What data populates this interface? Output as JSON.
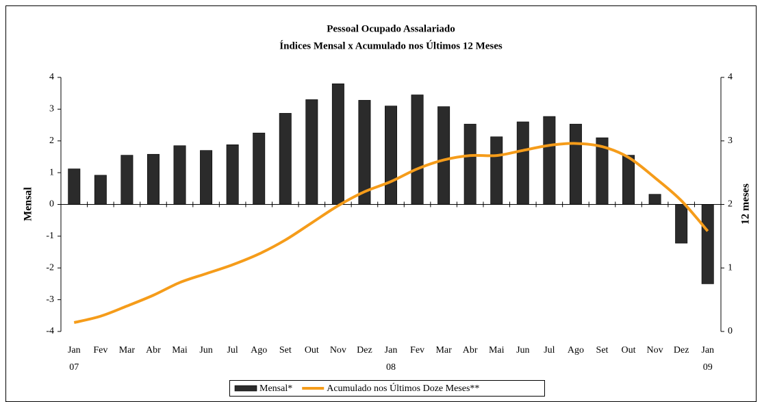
{
  "chart_data": {
    "type": "bar-line",
    "title": "Pessoal Ocupado Assalariado",
    "subtitle": "Índices Mensal x Acumulado nos Últimos 12 Meses",
    "y_label": "Mensal",
    "y2_label": "12 meses",
    "categories": [
      "Jan 07",
      "Fev",
      "Mar",
      "Abr",
      "Mai",
      "Jun",
      "Jul",
      "Ago",
      "Set",
      "Out",
      "Nov",
      "Dez",
      "Jan 08",
      "Fev",
      "Mar",
      "Abr",
      "Mai",
      "Jun",
      "Jul",
      "Ago",
      "Set",
      "Out",
      "Nov",
      "Dez",
      "Jan 09"
    ],
    "series": [
      {
        "name": "Mensal*",
        "type": "bar",
        "color": "#2b2b2b",
        "values": [
          1.12,
          0.92,
          1.55,
          1.58,
          1.85,
          1.7,
          1.88,
          2.25,
          2.87,
          3.3,
          3.8,
          3.28,
          3.1,
          3.45,
          3.08,
          2.53,
          2.13,
          2.6,
          2.77,
          2.53,
          2.1,
          1.55,
          0.32,
          -1.22,
          -2.5
        ]
      },
      {
        "name": "Acumulado nos Últimos Doze Meses**",
        "type": "line",
        "axis": "y2",
        "color": "#f59c1a",
        "values": [
          0.14,
          0.24,
          0.4,
          0.57,
          0.77,
          0.91,
          1.05,
          1.22,
          1.44,
          1.71,
          1.98,
          2.2,
          2.36,
          2.56,
          2.7,
          2.77,
          2.77,
          2.85,
          2.93,
          2.96,
          2.91,
          2.74,
          2.42,
          2.06,
          1.58
        ]
      }
    ],
    "ylim": [
      -4,
      4
    ],
    "yticks": [
      -4,
      -3,
      -2,
      -1,
      0,
      1,
      2,
      3,
      4
    ],
    "y2lim": [
      0,
      4
    ],
    "y2ticks": [
      0,
      1,
      2,
      3,
      4
    ],
    "legend": "bottom"
  }
}
